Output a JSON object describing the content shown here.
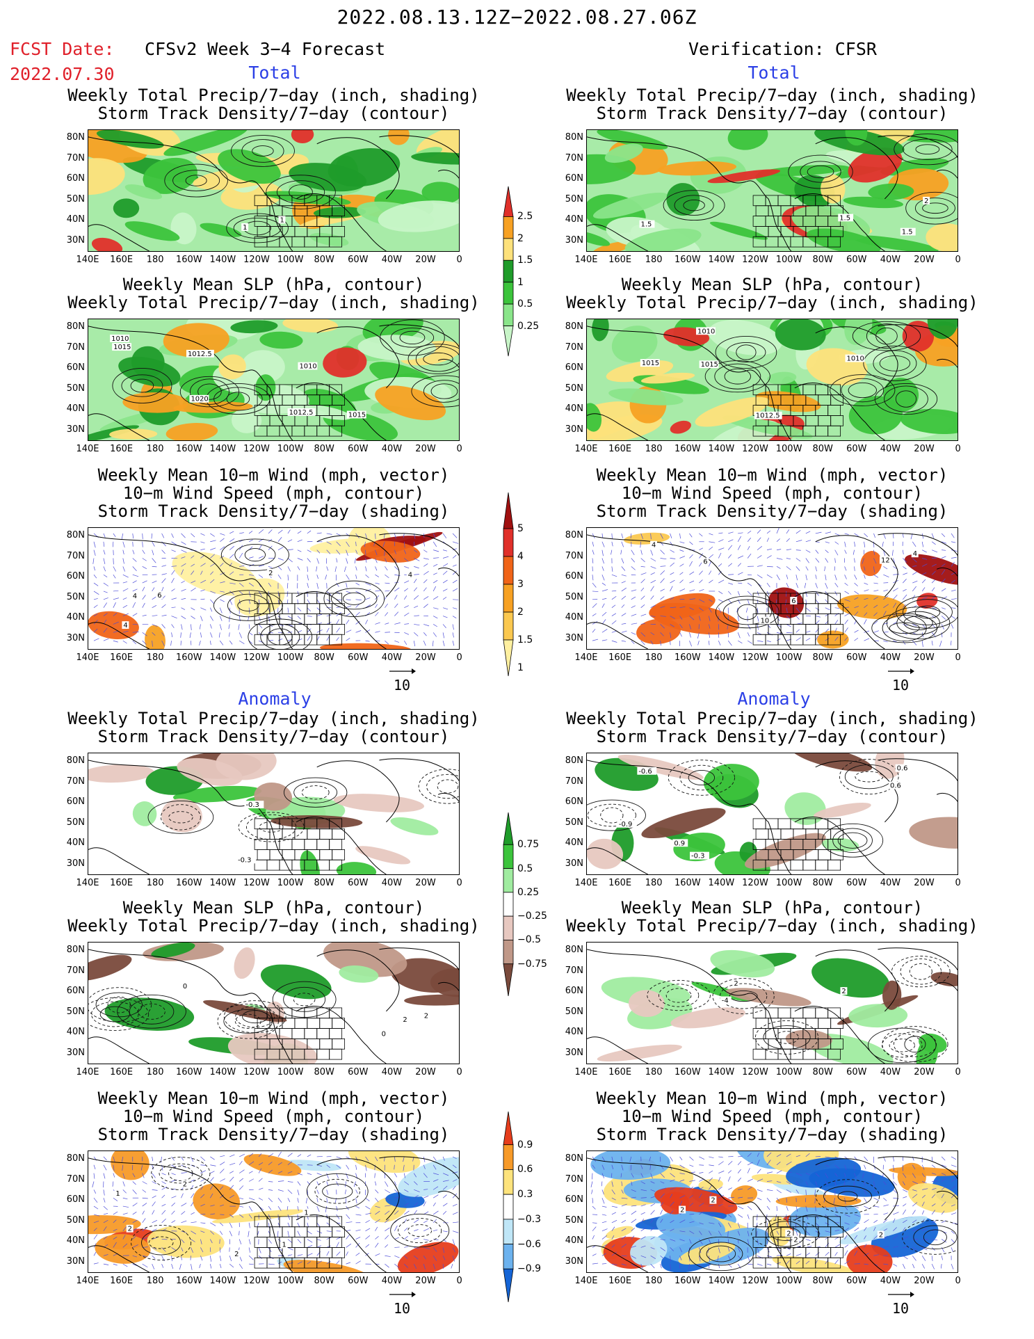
{
  "header": {
    "period": "2022.08.13.12Z−2022.08.27.06Z",
    "fcst_label": "FCST Date:",
    "fcst_date": "2022.07.30",
    "left_title": "CFSv2 Week 3−4 Forecast",
    "right_title": "Verification: CFSR"
  },
  "sections": {
    "total": "Total",
    "anomaly": "Anomaly"
  },
  "panel_titles": {
    "precip_storm": [
      "Weekly Total Precip/7−day (inch, shading)",
      "Storm Track Density/7−day (contour)"
    ],
    "slp_precip": [
      "Weekly Mean SLP (hPa, contour)",
      "Weekly Total Precip/7−day (inch, shading)"
    ],
    "wind_storm": [
      "Weekly Mean 10−m Wind (mph, vector)",
      "10−m Wind Speed (mph, contour)",
      "Storm Track Density/7−day (shading)"
    ]
  },
  "axes": {
    "lat_ticks": [
      "80N",
      "70N",
      "60N",
      "50N",
      "40N",
      "30N"
    ],
    "lon_ticks": [
      "140E",
      "160E",
      "180",
      "160W",
      "140W",
      "120W",
      "100W",
      "80W",
      "60W",
      "40W",
      "20W",
      "0"
    ]
  },
  "vector_ref": "10",
  "colorbars": {
    "precip_total": {
      "labels": [
        "2.5",
        "2",
        "1.5",
        "1",
        "0.5",
        "0.25"
      ],
      "colors": [
        "#e0302a",
        "#f7a123",
        "#fde17b",
        "#1f9c2a",
        "#3cc43c",
        "#8ae58a",
        "#c8f5c8"
      ]
    },
    "storm_total": {
      "labels": [
        "5",
        "4",
        "3",
        "2",
        "1.5",
        "1"
      ],
      "colors": [
        "#a01010",
        "#e0302a",
        "#f06418",
        "#f7a123",
        "#fbc84f",
        "#fff0a0"
      ]
    },
    "precip_anom": {
      "labels": [
        "0.75",
        "0.5",
        "0.25",
        "−0.25",
        "−0.5",
        "−0.75"
      ],
      "colors": [
        "#1f9c2a",
        "#3cc43c",
        "#a0eca0",
        "#ffffff",
        "#e7c8c0",
        "#c09888",
        "#7a4a3c"
      ]
    },
    "storm_anom": {
      "labels": [
        "0.9",
        "0.6",
        "0.3",
        "−0.3",
        "−0.6",
        "−0.9"
      ],
      "colors": [
        "#e63d1c",
        "#f79a28",
        "#fde37c",
        "#ffffff",
        "#bfe6f7",
        "#6cb2ee",
        "#1565d6"
      ]
    }
  },
  "panels": [
    {
      "id": "fc-total-precip",
      "title_key": "precip_storm",
      "labels": [
        "1",
        "1"
      ]
    },
    {
      "id": "fc-total-slp",
      "title_key": "slp_precip",
      "labels": [
        "1012.5",
        "1010",
        "1015",
        "1010",
        "1015",
        "1012.5",
        "1020"
      ]
    },
    {
      "id": "fc-total-wind",
      "title_key": "wind_storm",
      "labels": [
        "4",
        "2",
        "4",
        "6",
        "4"
      ]
    },
    {
      "id": "vf-total-precip",
      "title_key": "precip_storm",
      "labels": [
        "1.5",
        "2",
        "1.5",
        "1.5"
      ]
    },
    {
      "id": "vf-total-slp",
      "title_key": "slp_precip",
      "labels": [
        "1010",
        "1012.5",
        "1015",
        "1010",
        "1015"
      ]
    },
    {
      "id": "vf-total-wind",
      "title_key": "wind_storm",
      "labels": [
        "6",
        "4",
        "10",
        "12",
        "4",
        "6"
      ]
    },
    {
      "id": "fc-anom-precip",
      "title_key": "precip_storm",
      "labels": [
        "-0.3",
        "-0.3"
      ]
    },
    {
      "id": "fc-anom-slp",
      "title_key": "slp_precip",
      "labels": [
        "0",
        "2",
        "0",
        "2"
      ]
    },
    {
      "id": "fc-anom-wind",
      "title_key": "wind_storm",
      "labels": [
        "2",
        "2",
        "1",
        "1",
        "2",
        "1"
      ]
    },
    {
      "id": "vf-anom-precip",
      "title_key": "precip_storm",
      "labels": [
        "0.6",
        "0.6",
        "0.9",
        "-0.6",
        "-0.3",
        "-0.9"
      ]
    },
    {
      "id": "vf-anom-slp",
      "title_key": "slp_precip",
      "labels": [
        "2",
        "-4",
        "2"
      ]
    },
    {
      "id": "vf-anom-wind",
      "title_key": "wind_storm",
      "labels": [
        "2",
        "2",
        "2",
        "2",
        "2"
      ]
    }
  ]
}
